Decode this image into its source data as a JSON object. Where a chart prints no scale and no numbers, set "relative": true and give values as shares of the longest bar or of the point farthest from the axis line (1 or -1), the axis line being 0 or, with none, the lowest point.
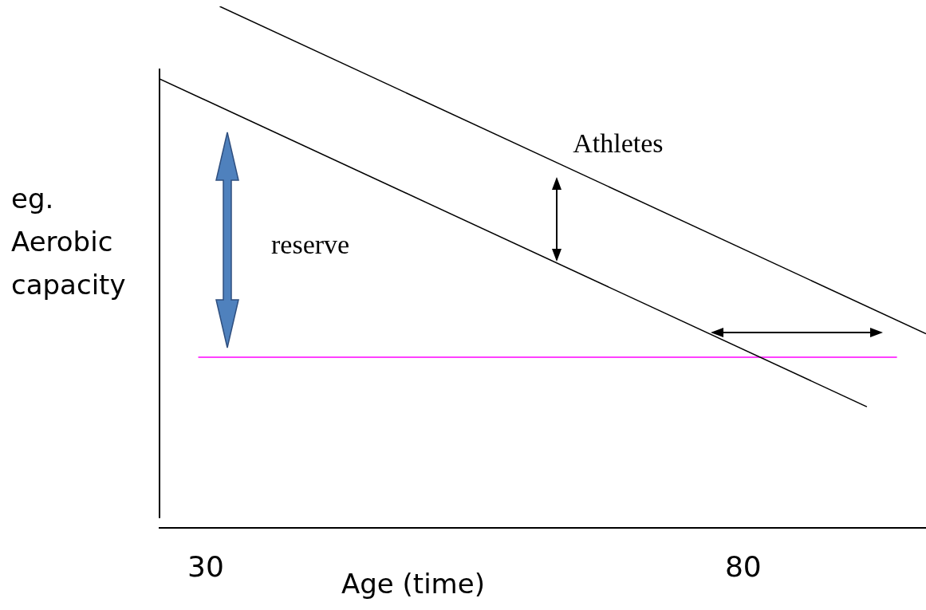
{
  "chart_data": {
    "type": "line",
    "relative": true,
    "xlabel": "Age (time)",
    "ylabel": "eg. Aerobic capacity",
    "xlim": [
      25.7,
      97
    ],
    "xticks": [
      30,
      80
    ],
    "legend": false,
    "grid": false,
    "marker": "none",
    "line_style": "solid",
    "annotations": [
      "reserve"
    ],
    "series": [
      {
        "name": "Athletes",
        "color": "#000000",
        "x": [
          31.3,
          97
        ],
        "values": [
          1,
          0.372
        ]
      },
      {
        "color": "#000000",
        "x": [
          25.7,
          91.5
        ],
        "values": [
          0.861,
          0.232
        ]
      },
      {
        "color": "#ff00ff",
        "x": [
          29.3,
          94.3
        ],
        "values": [
          0.327,
          0.327
        ]
      }
    ]
  }
}
